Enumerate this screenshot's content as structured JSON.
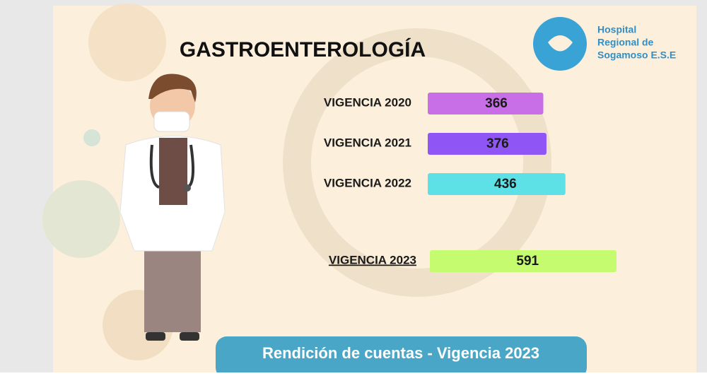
{
  "chart_data": {
    "type": "bar",
    "orientation": "horizontal",
    "title": "GASTROENTEROLOGÍA",
    "categories": [
      "VIGENCIA 2020",
      "VIGENCIA 2021",
      "VIGENCIA 2022",
      "VIGENCIA 2023"
    ],
    "values": [
      366,
      376,
      436,
      591
    ],
    "colors": [
      "#c86ee6",
      "#8f55f5",
      "#5ee1e6",
      "#c4fb6f"
    ]
  },
  "logo": {
    "lines": [
      "Hospital",
      "Regional de",
      "Sogamoso E.S.E"
    ]
  },
  "footer": {
    "text": "Rendición de cuentas - Vigencia 2023"
  }
}
